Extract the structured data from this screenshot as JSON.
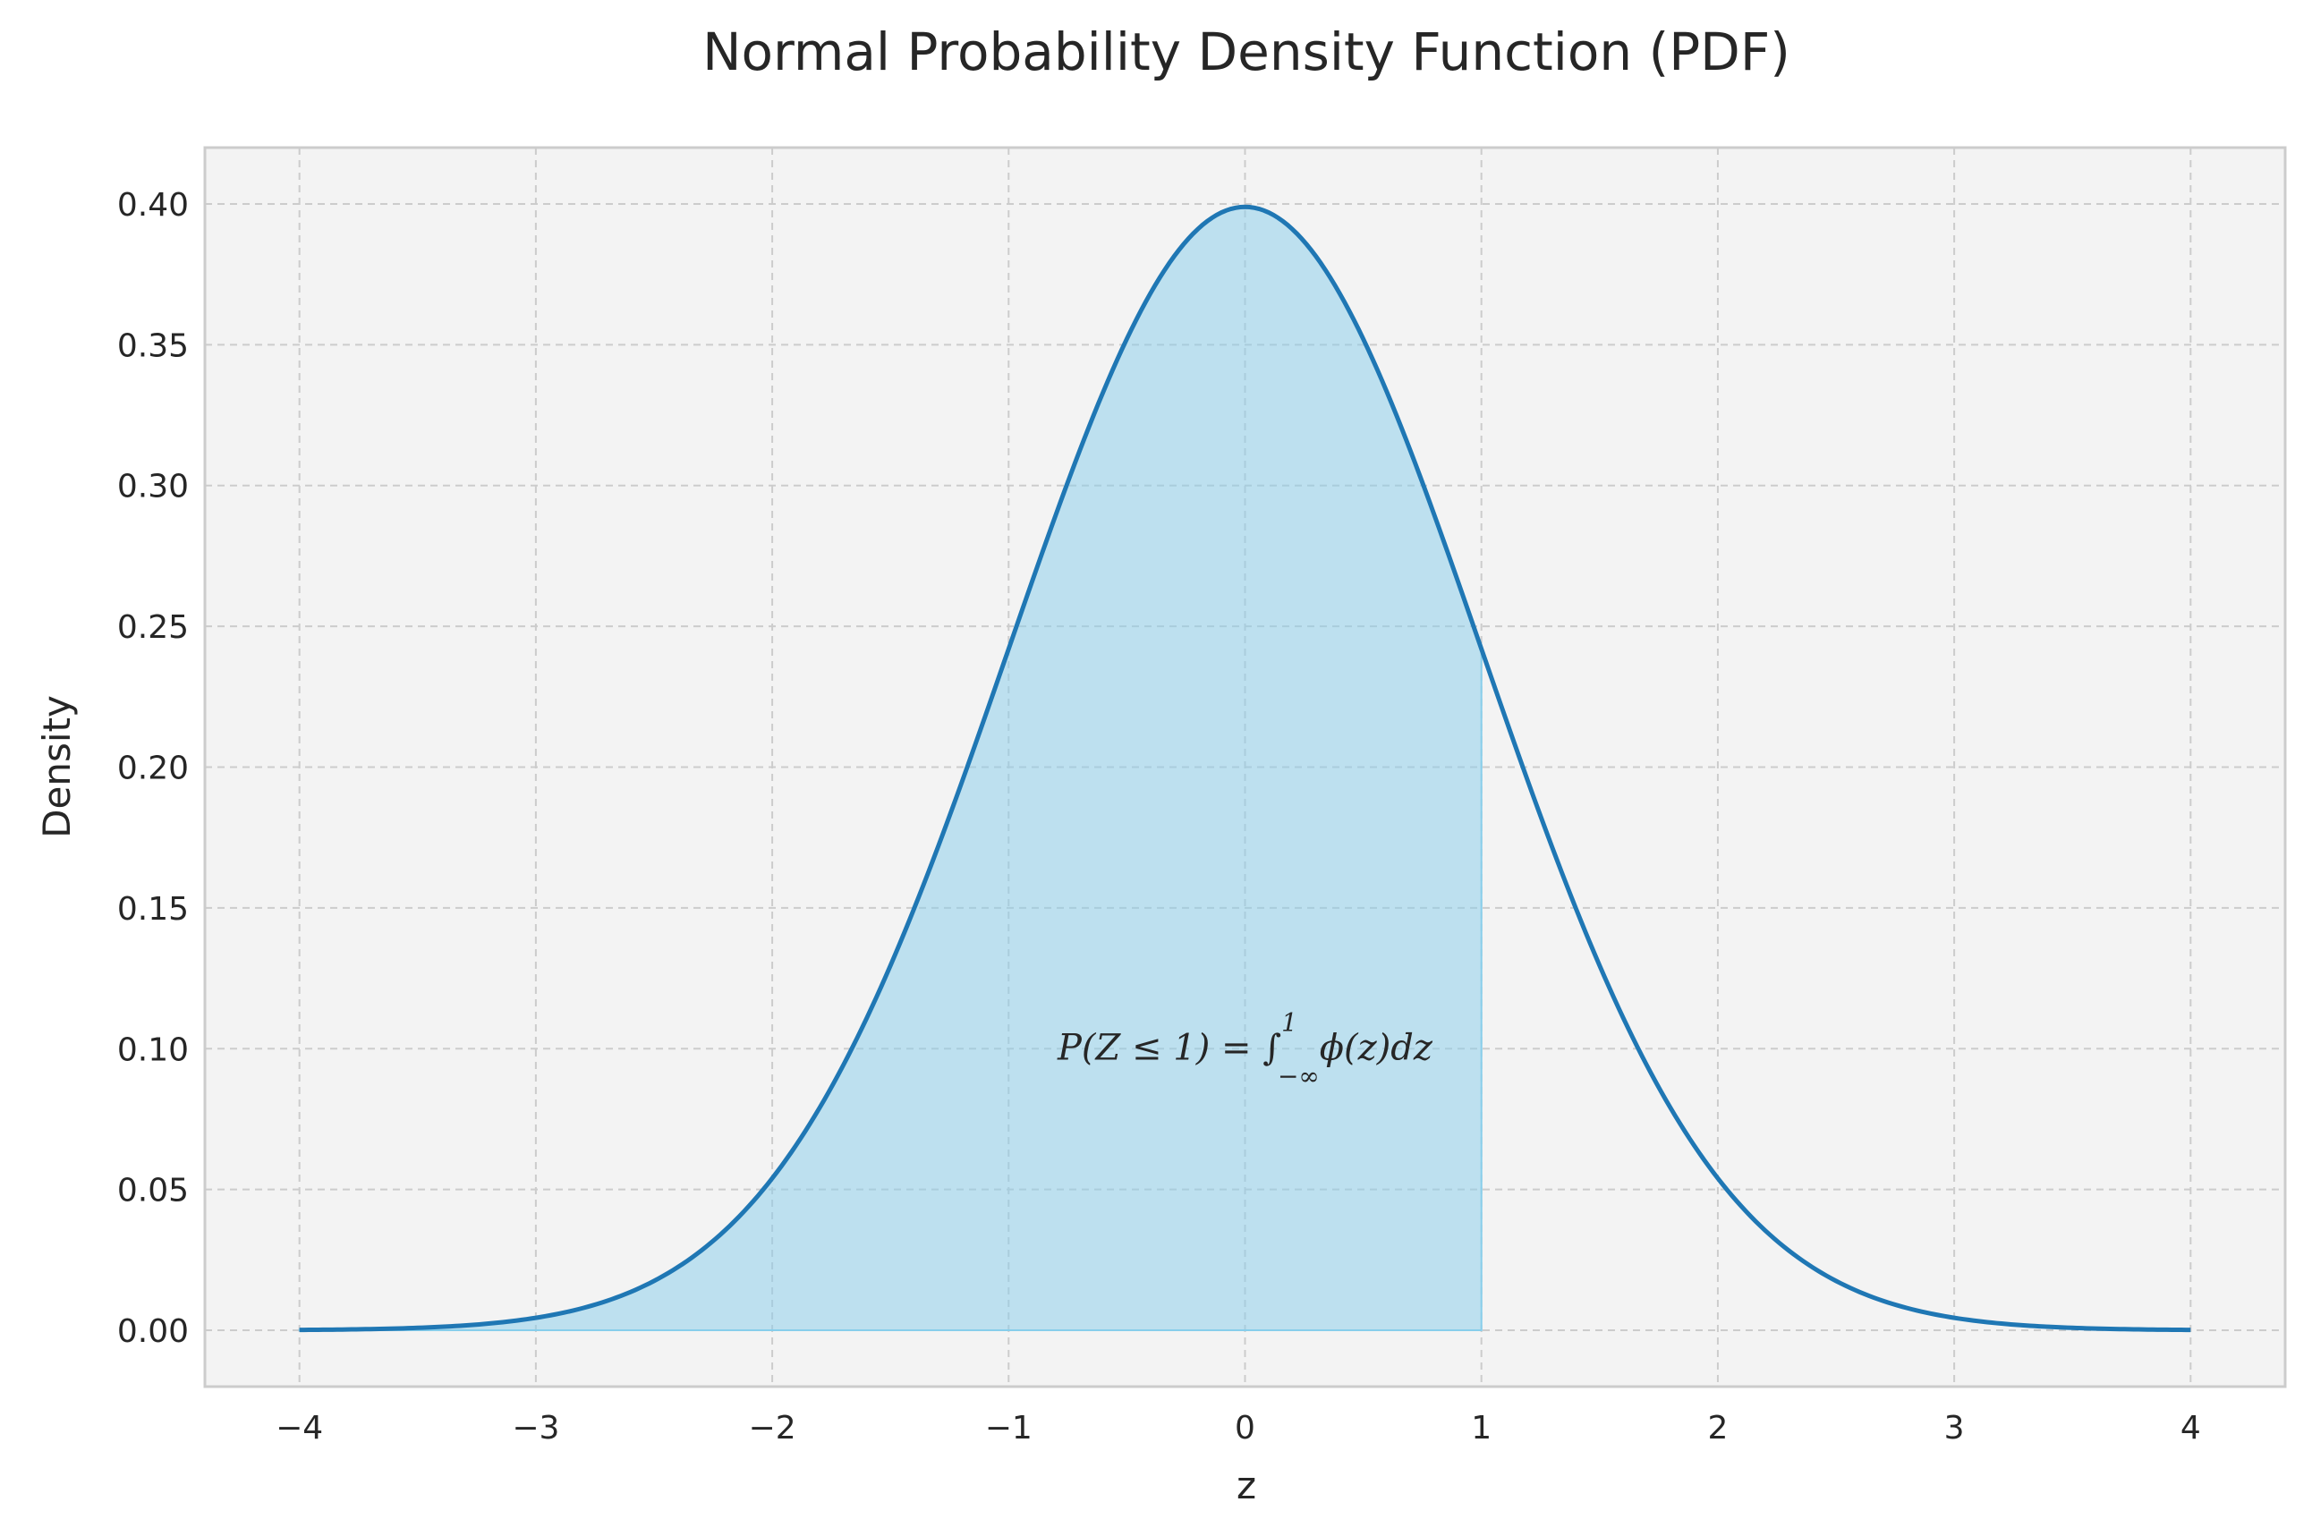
{
  "chart_data": {
    "type": "line",
    "title": "Normal Probability Density Function (PDF)",
    "xlabel": "z",
    "ylabel": "Density",
    "xlim": [
      -4.4,
      4.4
    ],
    "ylim": [
      -0.02,
      0.42
    ],
    "x_ticks": [
      -4,
      -3,
      -2,
      -1,
      0,
      1,
      2,
      3,
      4
    ],
    "x_tick_labels": [
      "−4",
      "−3",
      "−2",
      "−1",
      "0",
      "1",
      "2",
      "3",
      "4"
    ],
    "y_ticks": [
      0.0,
      0.05,
      0.1,
      0.15,
      0.2,
      0.25,
      0.3,
      0.35,
      0.4
    ],
    "y_tick_labels": [
      "0.00",
      "0.05",
      "0.10",
      "0.15",
      "0.20",
      "0.25",
      "0.30",
      "0.35",
      "0.40"
    ],
    "grid": true,
    "series": [
      {
        "x": [
          -4.0,
          -3.5,
          -3.0,
          -2.5,
          -2.0,
          -1.5,
          -1.0,
          -0.5,
          0.0,
          0.5,
          1.0,
          1.5,
          2.0,
          2.5,
          3.0,
          3.5,
          4.0
        ],
        "y": [
          0.0001,
          0.0009,
          0.0044,
          0.0175,
          0.054,
          0.1295,
          0.242,
          0.3521,
          0.3989,
          0.3521,
          0.242,
          0.1295,
          0.054,
          0.0175,
          0.0044,
          0.0009,
          0.0001
        ],
        "color": "#1f77b4"
      }
    ],
    "shaded_region": {
      "x_from": -4,
      "x_to": 1,
      "color": "#87ceeb"
    },
    "annotations": [
      {
        "text": "P(Z ≤ 1) = ∫",
        "sup": "1",
        "sub": "−∞",
        "tail": "ϕ(z)dz",
        "x": 0.0,
        "y": 0.1
      }
    ],
    "colors": {
      "background": "#f3f3f3",
      "grid": "#cccccc",
      "line": "#1f77b4",
      "fill": "#87ceeb"
    }
  }
}
